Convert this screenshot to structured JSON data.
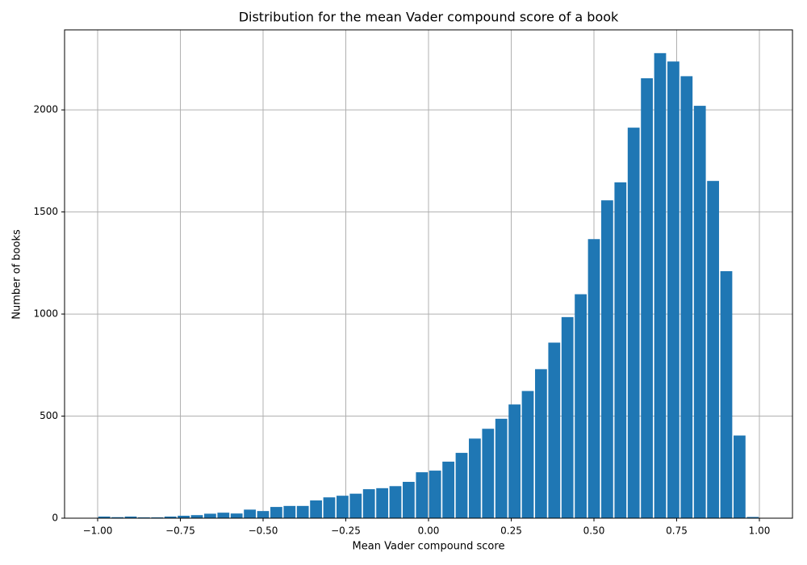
{
  "chart_data": {
    "type": "histogram",
    "title": "Distribution for the mean Vader compound score of a book",
    "xlabel": "Mean Vader compound score",
    "ylabel": "Number of books",
    "bins": [
      -1.0,
      -0.96,
      -0.92,
      -0.88,
      -0.84,
      -0.8,
      -0.76,
      -0.72,
      -0.68,
      -0.64,
      -0.6,
      -0.56,
      -0.52,
      -0.48,
      -0.44,
      -0.4,
      -0.36,
      -0.32,
      -0.28,
      -0.24,
      -0.2,
      -0.16,
      -0.12,
      -0.08,
      -0.04,
      0.0,
      0.04,
      0.08,
      0.12,
      0.16,
      0.2,
      0.24,
      0.28,
      0.32,
      0.36,
      0.4,
      0.44,
      0.48,
      0.52,
      0.56,
      0.6,
      0.64,
      0.68,
      0.72,
      0.76,
      0.8,
      0.84,
      0.88,
      0.92,
      0.96,
      1.0
    ],
    "counts": [
      8,
      5,
      8,
      4,
      4,
      8,
      12,
      15,
      22,
      27,
      23,
      42,
      35,
      55,
      60,
      60,
      87,
      102,
      110,
      120,
      142,
      147,
      157,
      178,
      225,
      233,
      277,
      320,
      390,
      438,
      487,
      557,
      623,
      730,
      860,
      985,
      1097,
      1367,
      1557,
      1645,
      1913,
      2155,
      2278,
      2237,
      2165,
      2020,
      1652,
      1210,
      405,
      6
    ],
    "color": "#1f77b4",
    "xlim": [
      -1.1,
      1.1
    ],
    "ylim": [
      0,
      2392
    ],
    "xticks": [
      {
        "value": -1.0,
        "label": "−1.00"
      },
      {
        "value": -0.75,
        "label": "−0.75"
      },
      {
        "value": -0.5,
        "label": "−0.50"
      },
      {
        "value": -0.25,
        "label": "−0.25"
      },
      {
        "value": 0.0,
        "label": "0.00"
      },
      {
        "value": 0.25,
        "label": "0.25"
      },
      {
        "value": 0.5,
        "label": "0.50"
      },
      {
        "value": 0.75,
        "label": "0.75"
      },
      {
        "value": 1.0,
        "label": "1.00"
      }
    ],
    "yticks": [
      0,
      500,
      1000,
      1500,
      2000
    ],
    "grid": true
  }
}
